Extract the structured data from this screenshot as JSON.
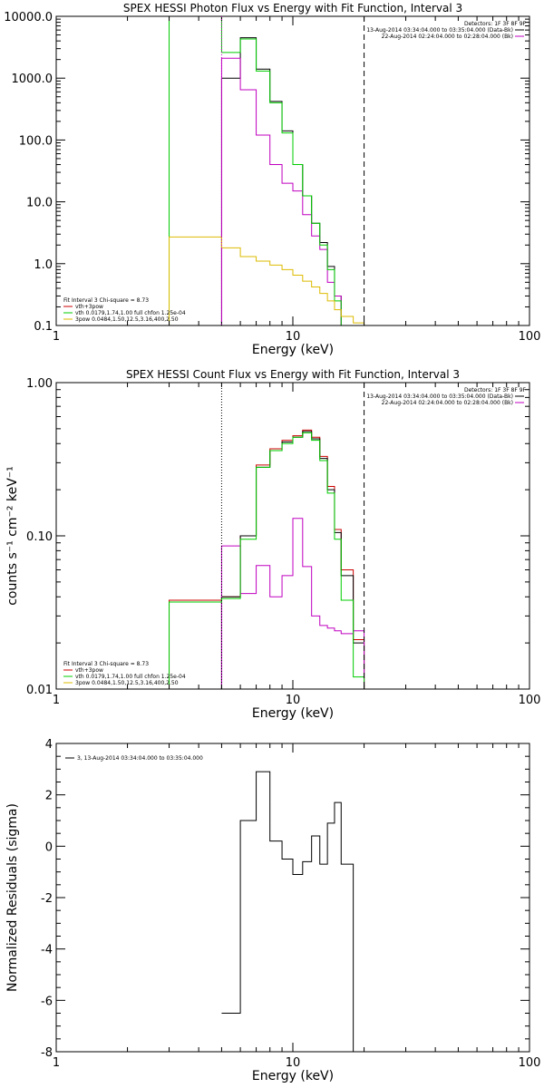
{
  "chart_data": [
    {
      "type": "line",
      "title": "SPEX HESSI Photon Flux vs Energy with Fit Function, Interval 3",
      "xlabel": "Energy (keV)",
      "ylabel": "",
      "xscale": "log",
      "yscale": "log",
      "xlim": [
        1,
        100
      ],
      "ylim": [
        0.1,
        10000
      ],
      "x_ticks": [
        "1",
        "10",
        "100"
      ],
      "y_ticks": [
        "0.1",
        "1.0",
        "10.0",
        "100.0",
        "1000.0",
        "10000.0"
      ],
      "vlines": [
        {
          "x": 5,
          "style": "dotted",
          "color": "#c000c0"
        },
        {
          "x": 20,
          "style": "dashed",
          "color": "#000000"
        }
      ],
      "legend_top_right": {
        "header": "Detectors: 1F 3F 8F 9F",
        "entries": [
          {
            "text": "13-Aug-2014 03:34:04.000 to 03:35:04.000 (Data-Bk)",
            "color": "#000000"
          },
          {
            "text": "22-Aug-2014 02:24:04.000 to 02:28:04.000 (Bk)",
            "color": "#c000c0"
          }
        ]
      },
      "legend_bottom_left": {
        "header": "Fit Interval 3   Chi-square = 8.73",
        "entries": [
          {
            "text": "vth+3pow",
            "color": "#cc0000"
          },
          {
            "text": "vth 0.0179,1.74,1.00  full chfon 1.25e-04",
            "color": "#00cc00"
          },
          {
            "text": "3pow 0.0484,1.50,12.5,3.16,400,2.50",
            "color": "#ddbb00"
          }
        ]
      },
      "edges": [
        3,
        5,
        6,
        7,
        8,
        9,
        10,
        11,
        12,
        13,
        14,
        15,
        16,
        18,
        20,
        22
      ],
      "series": [
        {
          "name": "Data-Bk",
          "color": "#000000",
          "x0": 5,
          "values": [
            1000,
            4500,
            1400,
            420,
            140,
            40,
            12.5,
            4.5,
            2.2,
            0.9,
            0.3,
            null
          ]
        },
        {
          "name": "Bk",
          "color": "#c000c0",
          "x0": 5,
          "values": [
            2100,
            650,
            120,
            40,
            20,
            15,
            6.2,
            2.8,
            1.7,
            0.5,
            0.3,
            0.1
          ]
        },
        {
          "name": "vth 0.0179,1.74,1.00  full chfon 1.25e-04",
          "color": "#00cc00",
          "x0": 3,
          "values": [
            10000,
            2600,
            4300,
            1300,
            400,
            130,
            40,
            12.5,
            4.5,
            2.0,
            0.8,
            0.25,
            null,
            null
          ]
        },
        {
          "name": "3pow 0.0484,1.50,12.5,3.16,400,2.50",
          "color": "#ddbb00",
          "x0": 3,
          "values": [
            2.7,
            1.8,
            1.3,
            1.1,
            0.95,
            0.8,
            0.65,
            0.52,
            0.42,
            0.33,
            0.25,
            0.18,
            0.14,
            0.11
          ]
        }
      ]
    },
    {
      "type": "line",
      "title": "SPEX HESSI Count Flux vs Energy with Fit Function, Interval 3",
      "xlabel": "Energy (keV)",
      "ylabel": "counts s⁻¹ cm⁻² keV⁻¹",
      "xscale": "log",
      "yscale": "log",
      "xlim": [
        1,
        100
      ],
      "ylim": [
        0.01,
        1.0
      ],
      "x_ticks": [
        "1",
        "10",
        "100"
      ],
      "y_ticks": [
        "0.01",
        "0.10",
        "1.00"
      ],
      "vlines": [
        {
          "x": 5,
          "style": "dotted",
          "color": "#000000"
        },
        {
          "x": 20,
          "style": "dashed",
          "color": "#000000"
        }
      ],
      "legend_top_right": {
        "header": "Detectors: 1F 3F 8F 9F",
        "entries": [
          {
            "text": "13-Aug-2014 03:34:04.000 to 03:35:04.000 (Data-Bk)",
            "color": "#000000"
          },
          {
            "text": "22-Aug-2014 02:24:04.000 to 02:28:04.000 (Bk)",
            "color": "#c000c0"
          }
        ]
      },
      "legend_bottom_left": {
        "header": "Fit Interval 3   Chi-square = 8.73",
        "entries": [
          {
            "text": "vth+3pow",
            "color": "#cc0000"
          },
          {
            "text": "vth 0.0179,1.74,1.00  full chfon 1.25e-04",
            "color": "#00cc00"
          },
          {
            "text": "3pow 0.0484,1.50,12.5,3.16,400,2.50",
            "color": "#ddbb00"
          }
        ]
      },
      "edges": [
        3,
        5,
        6,
        7,
        8,
        9,
        10,
        11,
        12,
        13,
        14,
        15,
        16,
        18,
        20,
        22
      ],
      "series": [
        {
          "name": "vth+3pow",
          "color": "#cc0000",
          "x0": 3,
          "values": [
            0.038,
            0.04,
            0.1,
            0.29,
            0.37,
            0.42,
            0.45,
            0.49,
            0.44,
            0.33,
            0.21,
            0.11,
            0.06,
            0.021
          ]
        },
        {
          "name": "Data-Bk",
          "color": "#000000",
          "x0": 5,
          "values": [
            0.04,
            0.1,
            0.28,
            0.36,
            0.41,
            0.44,
            0.48,
            0.43,
            0.32,
            0.2,
            0.105,
            0.055,
            0.02
          ]
        },
        {
          "name": "Bk",
          "color": "#c000c0",
          "x0": 5,
          "values": [
            0.086,
            0.042,
            0.064,
            0.04,
            0.055,
            0.13,
            0.063,
            0.03,
            0.026,
            0.025,
            0.024,
            0.023,
            0.024
          ]
        },
        {
          "name": "vth 0.0179,1.74,1.00  full chfon 1.25e-04",
          "color": "#00cc00",
          "x0": 3,
          "values": [
            0.037,
            0.039,
            0.095,
            0.28,
            0.36,
            0.4,
            0.44,
            0.47,
            0.42,
            0.31,
            0.19,
            0.095,
            0.038,
            0.012
          ]
        }
      ]
    },
    {
      "type": "line",
      "title": "",
      "xlabel": "Energy (keV)",
      "ylabel": "Normalized Residuals (sigma)",
      "xscale": "log",
      "yscale": "linear",
      "xlim": [
        1,
        100
      ],
      "ylim": [
        -8,
        4
      ],
      "x_ticks": [
        "1",
        "10",
        "100"
      ],
      "y_ticks": [
        "-8",
        "-6",
        "-4",
        "-2",
        "0",
        "2",
        "4"
      ],
      "legend_top_left": {
        "entries": [
          {
            "text": "3, 13-Aug-2014 03:34:04.000 to 03:35:04.000",
            "color": "#000000"
          }
        ]
      },
      "edges": [
        5,
        6,
        7,
        8,
        9,
        10,
        11,
        12,
        13,
        14,
        15,
        16,
        18,
        20
      ],
      "series": [
        {
          "name": "3, 13-Aug-2014 03:34:04.000 to 03:35:04.000",
          "color": "#000000",
          "x0": 5,
          "values": [
            -6.5,
            1.0,
            2.9,
            0.2,
            -0.5,
            -1.1,
            -0.6,
            0.4,
            -0.7,
            0.9,
            1.7,
            -0.7
          ]
        }
      ]
    }
  ]
}
